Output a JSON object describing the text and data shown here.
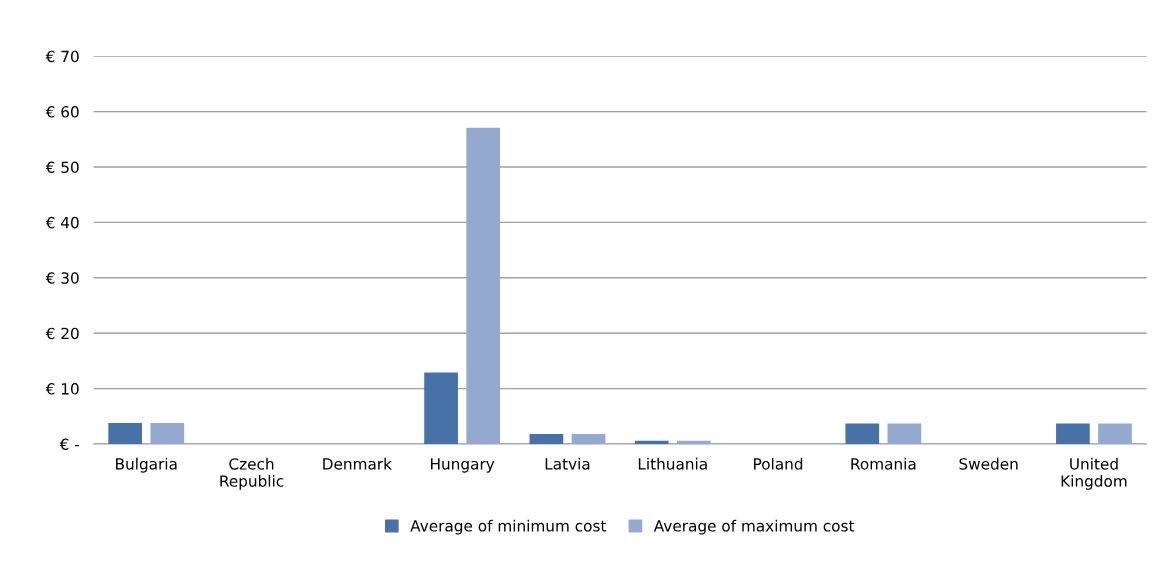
{
  "chart_data": {
    "type": "bar",
    "categories": [
      "Bulgaria",
      "Czech\nRepublic",
      "Denmark",
      "Hungary",
      "Latvia",
      "Lithuania",
      "Poland",
      "Romania",
      "Sweden",
      "United\nKingdom"
    ],
    "series": [
      {
        "name": "Average of minimum cost",
        "color": "#4672a7",
        "values": [
          3.8,
          0,
          0,
          12.9,
          1.8,
          0.6,
          0,
          3.7,
          0,
          3.7
        ]
      },
      {
        "name": "Average of maximum cost",
        "color": "#94a9d0",
        "values": [
          3.8,
          0,
          0,
          57.1,
          1.8,
          0.6,
          0,
          3.7,
          0,
          3.7
        ]
      }
    ],
    "ylim": [
      0,
      70
    ],
    "yticks": [
      {
        "value": 0,
        "label": "€ -"
      },
      {
        "value": 10,
        "label": "€ 10"
      },
      {
        "value": 20,
        "label": "€ 20"
      },
      {
        "value": 30,
        "label": "€ 30"
      },
      {
        "value": 40,
        "label": "€ 40"
      },
      {
        "value": 50,
        "label": "€ 50"
      },
      {
        "value": 60,
        "label": "€ 60"
      },
      {
        "value": 70,
        "label": "€ 70"
      }
    ],
    "grid": "y",
    "legend": "bottom"
  }
}
